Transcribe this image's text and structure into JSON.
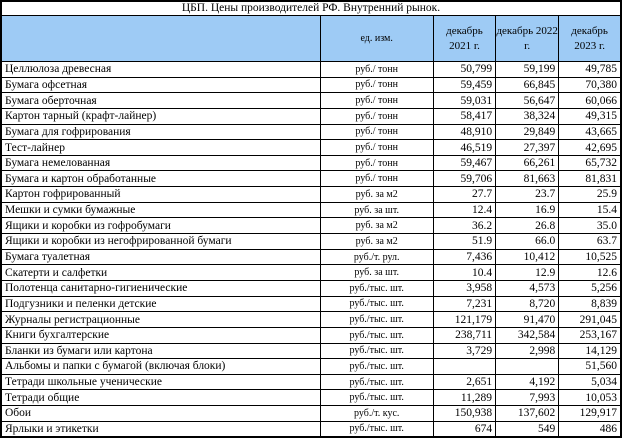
{
  "title": "ЦБП. Цены производителей РФ. Внутренний рынок.",
  "colors": {
    "header_bg": "#9ecbf5",
    "grid_border": "#000000",
    "background": "#ffffff",
    "text": "#000000"
  },
  "table": {
    "headers": {
      "product": "",
      "unit": "ед. изм.",
      "dec2021": "декабрь 2021 г.",
      "dec2022": "декабрь 2022 г.",
      "dec2023": "декабрь 2023 г."
    },
    "rows": [
      {
        "name": "Целлюлоза древесная",
        "unit": "руб./ тонн",
        "dec2021": "50,799",
        "dec2022": "59,199",
        "dec2023": "49,785"
      },
      {
        "name": "Бумага офсетная",
        "unit": "руб./ тонн",
        "dec2021": "59,459",
        "dec2022": "66,845",
        "dec2023": "70,380"
      },
      {
        "name": "Бумага оберточная",
        "unit": "руб./ тонн",
        "dec2021": "59,031",
        "dec2022": "56,647",
        "dec2023": "60,066"
      },
      {
        "name": "Картон тарный (крафт-лайнер)",
        "unit": "руб./ тонн",
        "dec2021": "58,417",
        "dec2022": "38,324",
        "dec2023": "49,315"
      },
      {
        "name": "Бумага для гофрирования",
        "unit": "руб./ тонн",
        "dec2021": "48,910",
        "dec2022": "29,849",
        "dec2023": "43,665"
      },
      {
        "name": "Тест-лайнер",
        "unit": "руб./ тонн",
        "dec2021": "46,519",
        "dec2022": "27,397",
        "dec2023": "42,695"
      },
      {
        "name": "Бумага немелованная",
        "unit": "руб./ тонн",
        "dec2021": "59,467",
        "dec2022": "66,261",
        "dec2023": "65,732"
      },
      {
        "name": "Бумага и картон обработанные",
        "unit": "руб./ тонн",
        "dec2021": "59,706",
        "dec2022": "81,663",
        "dec2023": "81,831"
      },
      {
        "name": "Картон гофрированный",
        "unit": "руб. за м2",
        "dec2021": "27.7",
        "dec2022": "23.7",
        "dec2023": "25.9"
      },
      {
        "name": "Мешки и сумки бумажные",
        "unit": "руб. за шт.",
        "dec2021": "12.4",
        "dec2022": "16.9",
        "dec2023": "15.4"
      },
      {
        "name": "Ящики и коробки из гофробумаги",
        "unit": "руб. за м2",
        "dec2021": "36.2",
        "dec2022": "26.8",
        "dec2023": "35.0"
      },
      {
        "name": "Ящики и коробки из негофрированной бумаги",
        "unit": "руб. за м2",
        "dec2021": "51.9",
        "dec2022": "66.0",
        "dec2023": "63.7"
      },
      {
        "name": "Бумага туалетная",
        "unit": "руб./т. рул.",
        "dec2021": "7,436",
        "dec2022": "10,412",
        "dec2023": "10,525"
      },
      {
        "name": "Скатерти и салфетки",
        "unit": "руб. за шт.",
        "dec2021": "10.4",
        "dec2022": "12.9",
        "dec2023": "12.6"
      },
      {
        "name": "Полотенца санитарно-гигиенические",
        "unit": "руб./тыс. шт.",
        "dec2021": "3,958",
        "dec2022": "4,573",
        "dec2023": "5,256"
      },
      {
        "name": "Подгузники и пеленки детские",
        "unit": "руб./тыс. шт.",
        "dec2021": "7,231",
        "dec2022": "8,720",
        "dec2023": "8,839"
      },
      {
        "name": "Журналы регистрационные",
        "unit": "руб./тыс. шт.",
        "dec2021": "121,179",
        "dec2022": "91,470",
        "dec2023": "291,045"
      },
      {
        "name": "Книги бухгалтерские",
        "unit": "руб./тыс. шт.",
        "dec2021": "238,711",
        "dec2022": "342,584",
        "dec2023": "253,167"
      },
      {
        "name": "Бланки из бумаги или картона",
        "unit": "руб./тыс. шт.",
        "dec2021": "3,729",
        "dec2022": "2,998",
        "dec2023": "14,129"
      },
      {
        "name": "Альбомы и папки с бумагой (включая блоки)",
        "unit": "руб./тыс. шт.",
        "dec2021": "",
        "dec2022": "",
        "dec2023": "51,560"
      },
      {
        "name": "Тетради школьные ученические",
        "unit": "руб./тыс. шт.",
        "dec2021": "2,651",
        "dec2022": "4,192",
        "dec2023": "5,034"
      },
      {
        "name": "Тетради общие",
        "unit": "руб./тыс. шт.",
        "dec2021": "11,289",
        "dec2022": "7,993",
        "dec2023": "10,053"
      },
      {
        "name": "Обои",
        "unit": "руб./т. кус.",
        "dec2021": "150,938",
        "dec2022": "137,602",
        "dec2023": "129,917"
      },
      {
        "name": "Ярлыки и этикетки",
        "unit": "руб./тыс. шт.",
        "dec2021": "674",
        "dec2022": "549",
        "dec2023": "486"
      }
    ]
  }
}
